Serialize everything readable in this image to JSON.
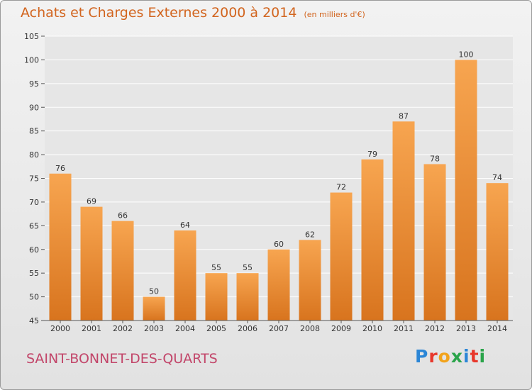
{
  "title": {
    "main": "Achats et Charges Externes 2000 à 2014",
    "note": "(en milliers d'€)"
  },
  "place_name": "SAINT-BONNET-DES-QUARTS",
  "logo": {
    "text": "Proxiti",
    "letter_colors": [
      "#2b86d6",
      "#e8372b",
      "#f2a31b",
      "#2aa44a",
      "#2b86d6",
      "#e8372b",
      "#2aa44a"
    ]
  },
  "chart_data": {
    "type": "bar",
    "title": "Achats et Charges Externes 2000 à 2014",
    "subtitle": "(en milliers d'€)",
    "xlabel": "",
    "ylabel": "",
    "categories": [
      "2000",
      "2001",
      "2002",
      "2003",
      "2004",
      "2005",
      "2006",
      "2007",
      "2008",
      "2009",
      "2010",
      "2011",
      "2012",
      "2013",
      "2014"
    ],
    "values": [
      76,
      69,
      66,
      50,
      64,
      55,
      55,
      60,
      62,
      72,
      79,
      87,
      78,
      100,
      74
    ],
    "ylim": [
      45,
      105
    ],
    "yticks": [
      45,
      50,
      55,
      60,
      65,
      70,
      75,
      80,
      85,
      90,
      95,
      100,
      105
    ],
    "grid": true,
    "legend": "none",
    "colors": {
      "bar_light": "#f7a550",
      "bar_dark": "#d8741e",
      "grid": "#ffffff",
      "plot_bg": "#e6e6e6"
    }
  }
}
